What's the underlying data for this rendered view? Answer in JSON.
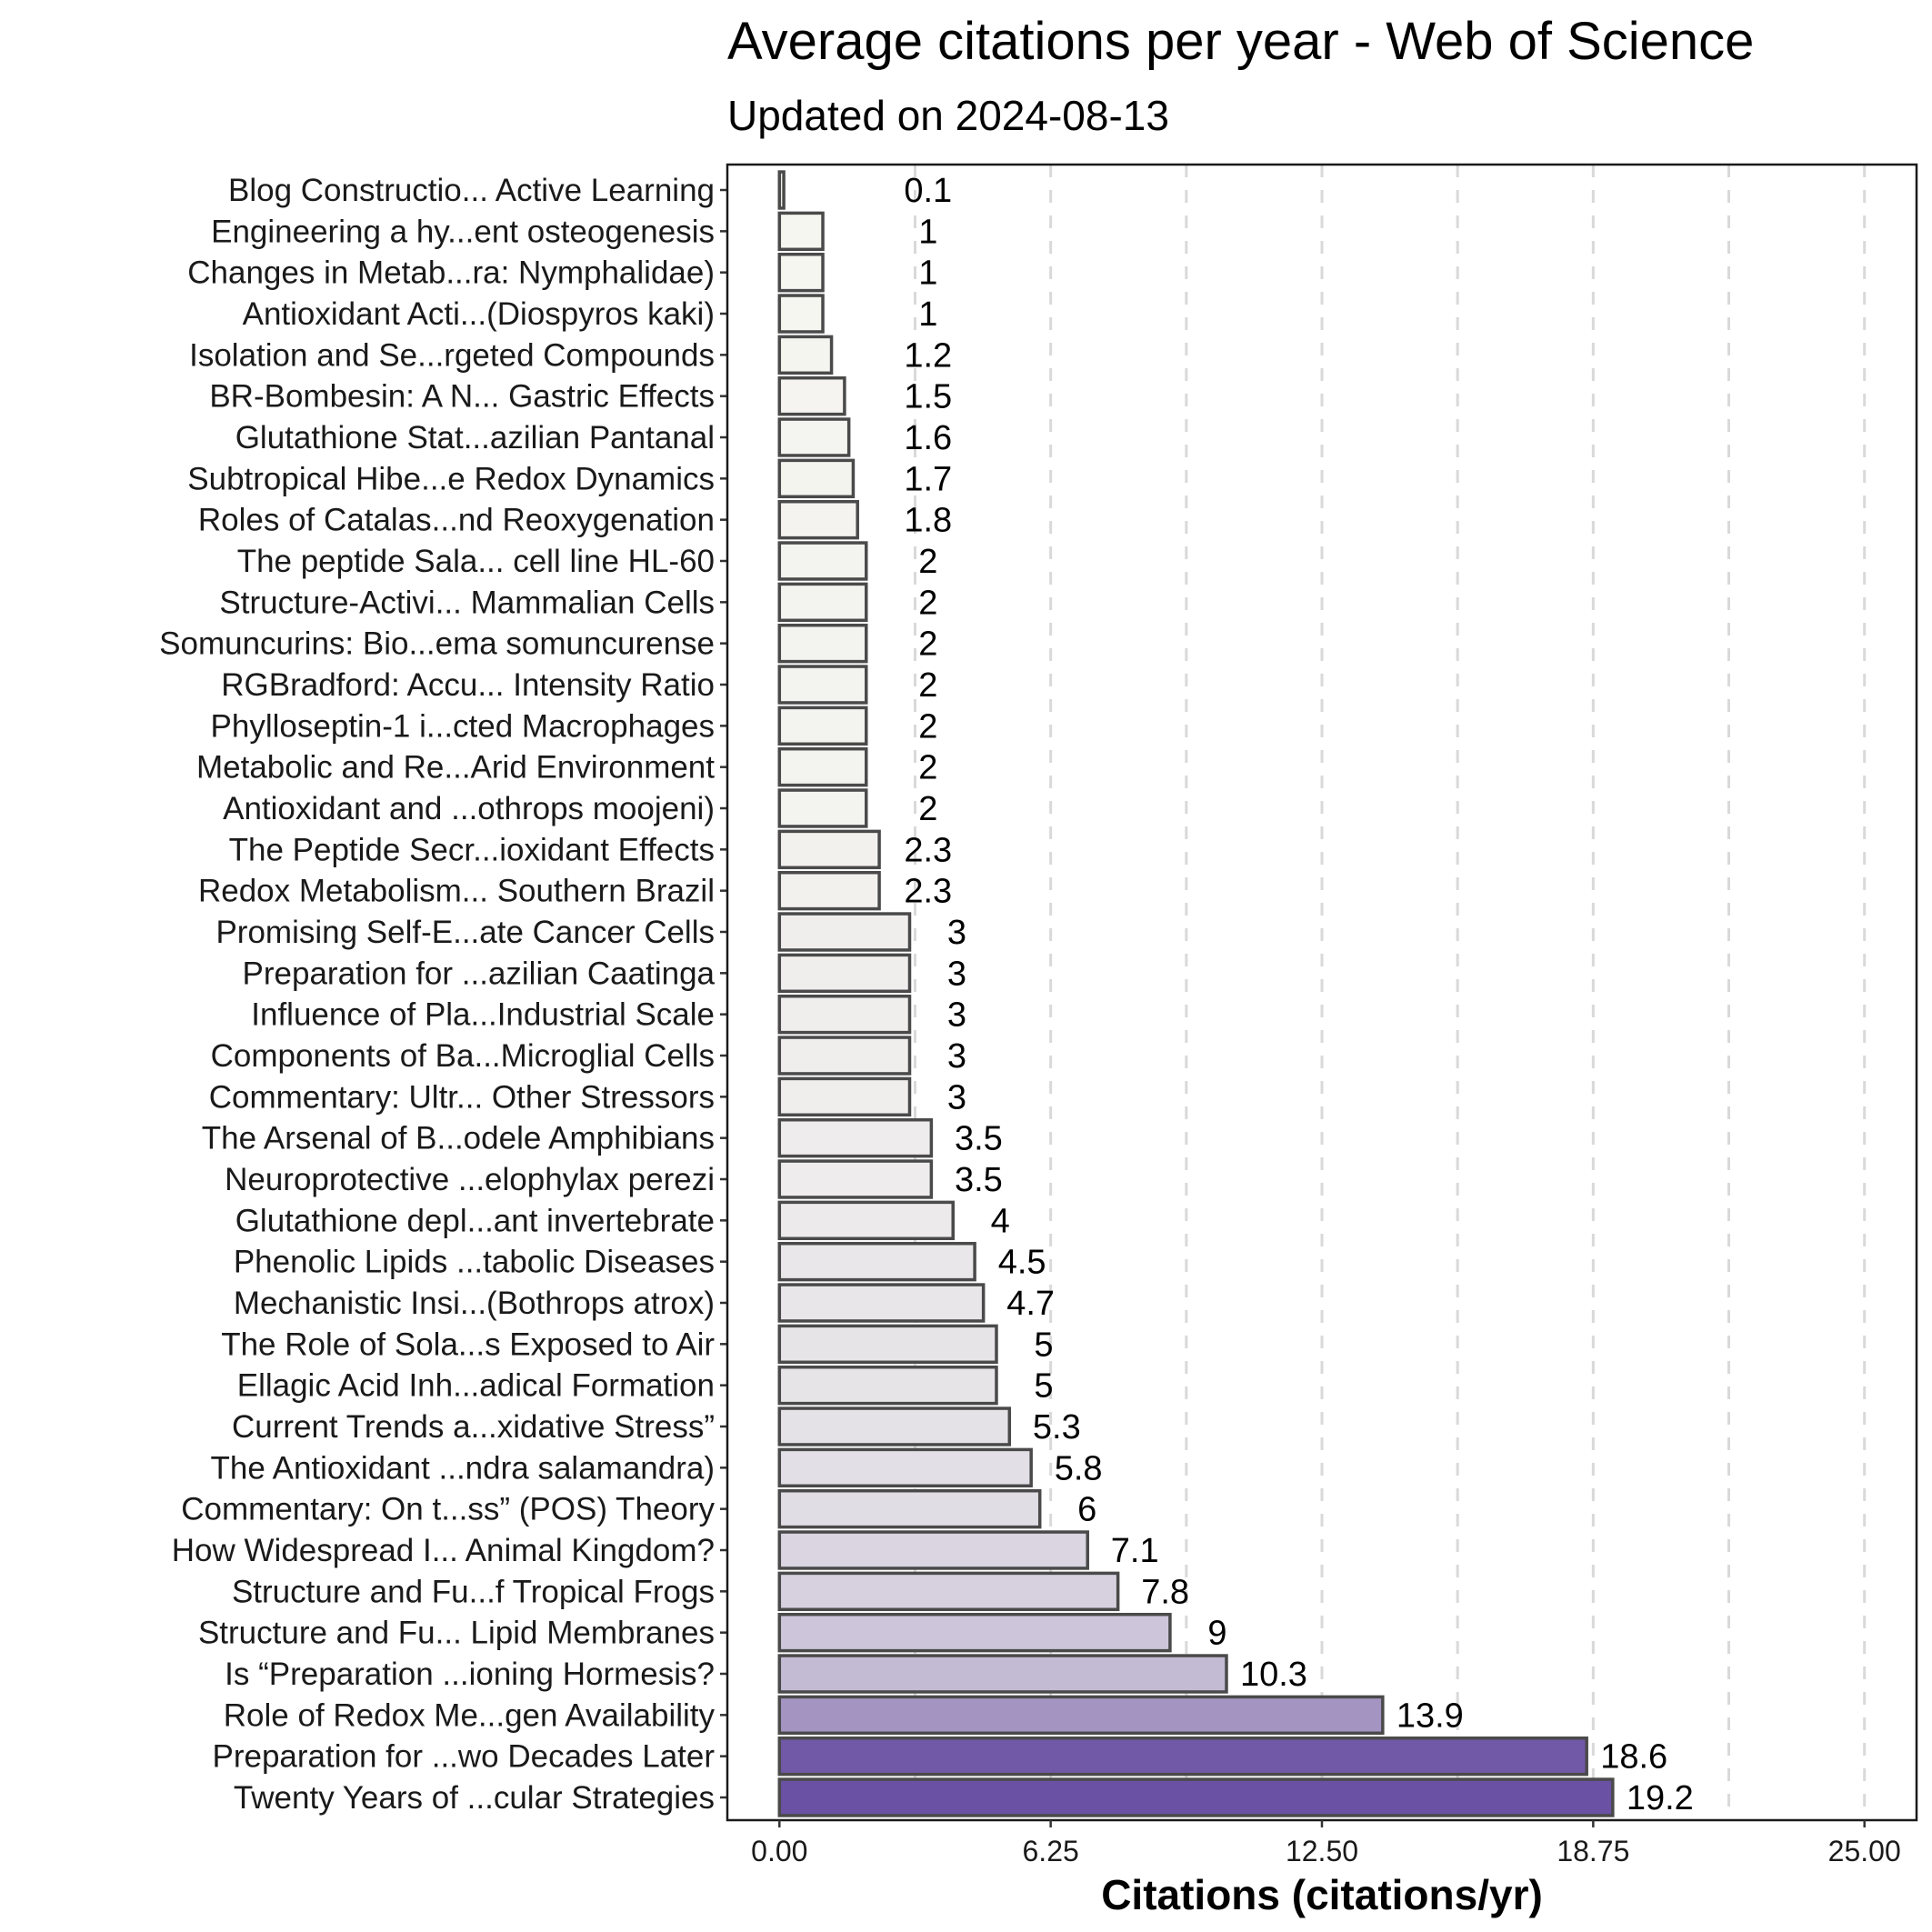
{
  "chart_data": {
    "type": "bar",
    "orientation": "horizontal",
    "title": "Average citations per year - Web of Science",
    "subtitle": "Updated on 2024-08-13",
    "xlabel": "Citations (citations/yr)",
    "ylabel": "",
    "xlim": [
      -1.2,
      26.2
    ],
    "xticks": [
      "0.00",
      "6.25",
      "12.50",
      "18.75",
      "25.00"
    ],
    "xtick_values": [
      0,
      6.25,
      12.5,
      18.75,
      25
    ],
    "grid": "dashed vertical",
    "color_low": "#f7f7f1",
    "color_high": "#6a51a3",
    "bar_edge": "#4a4a4a",
    "categories": [
      "Blog Constructio... Active Learning",
      "Engineering a hy...ent osteogenesis",
      "Changes in Metab...ra: Nymphalidae)",
      "Antioxidant Acti...(Diospyros kaki)",
      "Isolation and Se...rgeted Compounds",
      "BR-Bombesin: A N... Gastric Effects",
      "Glutathione Stat...azilian Pantanal",
      "Subtropical Hibe...e Redox Dynamics",
      "Roles of Catalas...nd Reoxygenation",
      "The peptide Sala... cell line HL-60",
      "Structure-Activi... Mammalian Cells",
      "Somuncurins: Bio...ema somuncurense",
      "RGBradford: Accu... Intensity Ratio",
      "Phylloseptin-1 i...cted Macrophages",
      "Metabolic and Re...Arid Environment",
      "Antioxidant and ...othrops moojeni)",
      "The Peptide Secr...ioxidant Effects",
      "Redox Metabolism... Southern Brazil",
      "Promising Self-E...ate Cancer Cells",
      "Preparation for ...azilian Caatinga",
      "Influence of Pla...Industrial Scale",
      "Components of Ba...Microglial Cells",
      "Commentary: Ultr... Other Stressors",
      "The Arsenal of B...odele Amphibians",
      "Neuroprotective ...elophylax perezi",
      "Glutathione depl...ant invertebrate",
      "Phenolic Lipids ...tabolic Diseases",
      "Mechanistic Insi...(Bothrops atrox)",
      "The Role of Sola...s Exposed to Air",
      "Ellagic Acid Inh...adical Formation",
      "Current Trends a...xidative Stress”",
      "The Antioxidant ...ndra salamandra)",
      "Commentary: On t...ss” (POS) Theory",
      "How Widespread I... Animal Kingdom?",
      "Structure and Fu...f Tropical Frogs",
      "Structure and Fu... Lipid Membranes",
      "Is “Preparation ...ioning Hormesis?",
      "Role of Redox Me...gen Availability",
      "Preparation for ...wo Decades Later",
      "Twenty Years of ...cular Strategies"
    ],
    "values": [
      0.1,
      1,
      1,
      1,
      1.2,
      1.5,
      1.6,
      1.7,
      1.8,
      2,
      2,
      2,
      2,
      2,
      2,
      2,
      2.3,
      2.3,
      3,
      3,
      3,
      3,
      3,
      3.5,
      3.5,
      4,
      4.5,
      4.7,
      5,
      5,
      5.3,
      5.8,
      6,
      7.1,
      7.8,
      9,
      10.3,
      13.9,
      18.6,
      19.2
    ],
    "value_labels": [
      "0.1",
      "1",
      "1",
      "1",
      "1.2",
      "1.5",
      "1.6",
      "1.7",
      "1.8",
      "2",
      "2",
      "2",
      "2",
      "2",
      "2",
      "2",
      "2.3",
      "2.3",
      "3",
      "3",
      "3",
      "3",
      "3",
      "3.5",
      "3.5",
      "4",
      "4.5",
      "4.7",
      "5",
      "5",
      "5.3",
      "5.8",
      "6",
      "7.1",
      "7.8",
      "9",
      "10.3",
      "13.9",
      "18.6",
      "19.2"
    ]
  }
}
